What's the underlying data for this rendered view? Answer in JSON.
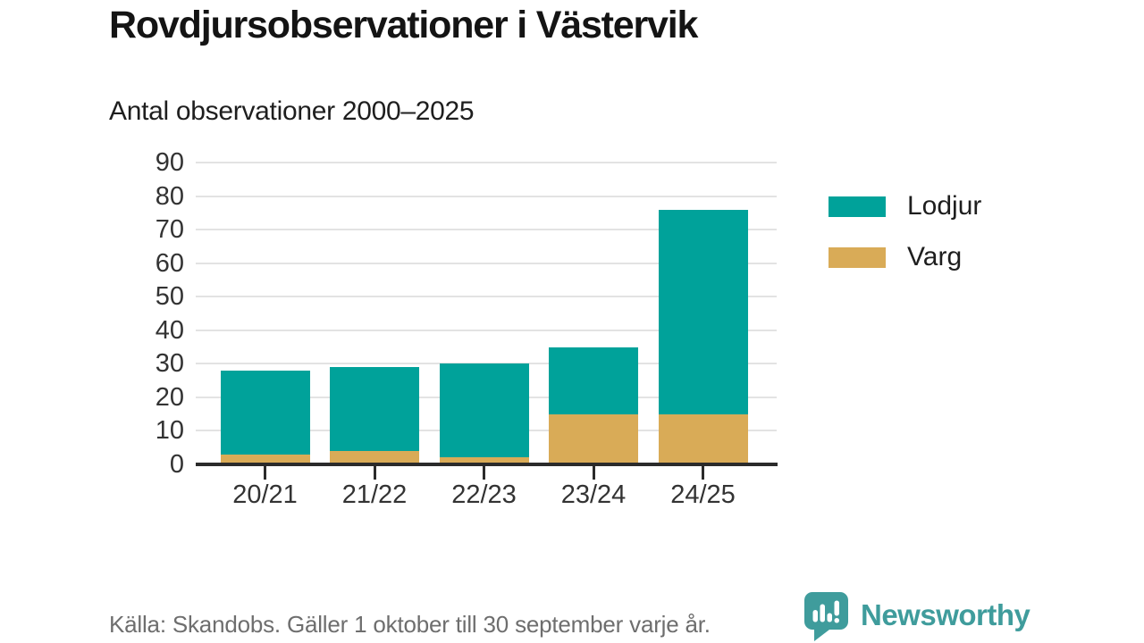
{
  "header": {
    "title": "Rovdjursobservationer i Västervik",
    "subtitle": "Antal observationer 2000–2025"
  },
  "chart_data": {
    "type": "bar",
    "stacked": true,
    "title": "Rovdjursobservationer i Västervik",
    "subtitle": "Antal observationer 2000–2025",
    "categories": [
      "20/21",
      "21/22",
      "22/23",
      "23/24",
      "24/25"
    ],
    "series": [
      {
        "name": "Varg",
        "color": "#d9ab57",
        "values": [
          3,
          4,
          2,
          15,
          15
        ]
      },
      {
        "name": "Lodjur",
        "color": "#00a29a",
        "values": [
          25,
          25,
          28,
          20,
          61
        ]
      }
    ],
    "totals": [
      28,
      29,
      30,
      35,
      76
    ],
    "xlabel": "",
    "ylabel": "",
    "ylim": [
      0,
      90
    ],
    "yticks": [
      0,
      10,
      20,
      30,
      40,
      50,
      60,
      70,
      80,
      90
    ],
    "grid": "horizontal",
    "legend_position": "right"
  },
  "legend": {
    "items": [
      {
        "label": "Lodjur",
        "color": "#00a29a"
      },
      {
        "label": "Varg",
        "color": "#d9ab57"
      }
    ]
  },
  "footer": {
    "source": "Källa: Skandobs. Gäller 1 oktober till 30 september varje år.",
    "brand": "Newsworthy",
    "brand_color": "#3f9c9c",
    "logo_icon": "bar-chart-speech-bubble"
  },
  "colors": {
    "lodjur": "#00a29a",
    "varg": "#d9ab57",
    "axis": "#2b2b2b",
    "grid": "#e3e3e3",
    "tick_text": "#333333",
    "title_text": "#141414",
    "muted_text": "#6e6e6e"
  }
}
